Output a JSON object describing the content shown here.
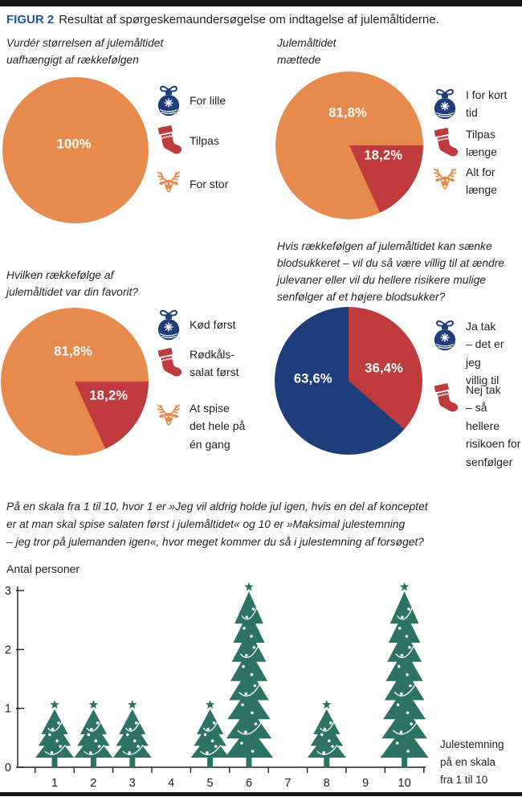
{
  "colors": {
    "orange": "#E78A4E",
    "red": "#BE3A3C",
    "navy": "#1E3D7B",
    "green": "#2C7365",
    "figblue": "#2355A0",
    "text": "#231F20",
    "rule": "#151515"
  },
  "header": {
    "figure_label": "FIGUR 2",
    "title": "Resultat af spørgeskemaundersøgelse om indtagelse af julemåltiderne."
  },
  "chart_data": [
    {
      "type": "pie",
      "question": "Vurdér størrelsen af julemåltidet\nuafhængigt af rækkefølgen",
      "from_deg": 0,
      "slices": [
        {
          "label": "100%",
          "value": 100,
          "color": "orange"
        }
      ],
      "legend": [
        {
          "icon": "ornament-icon",
          "color": "navy",
          "label": "For lille"
        },
        {
          "icon": "stocking-icon",
          "color": "red",
          "label": "Tilpas"
        },
        {
          "icon": "reindeer-icon",
          "color": "orange",
          "label": "For stor"
        }
      ]
    },
    {
      "type": "pie",
      "question": "Julemåltidet\nmættede",
      "from_deg": 155.52,
      "slices": [
        {
          "label": "81,8%",
          "value": 81.8,
          "color": "orange"
        },
        {
          "label": "18,2%",
          "value": 18.2,
          "color": "red"
        }
      ],
      "legend": [
        {
          "icon": "ornament-icon",
          "color": "navy",
          "label": "I for kort tid"
        },
        {
          "icon": "stocking-icon",
          "color": "red",
          "label": "Tilpas længe"
        },
        {
          "icon": "reindeer-icon",
          "color": "orange",
          "label": "Alt for længe"
        }
      ]
    },
    {
      "type": "pie",
      "question": "Hvilken rækkefølge af\njulemåltidet var din favorit?",
      "from_deg": 155.52,
      "slices": [
        {
          "label": "81,8%",
          "value": 81.8,
          "color": "orange"
        },
        {
          "label": "18,2%",
          "value": 18.2,
          "color": "red"
        }
      ],
      "legend": [
        {
          "icon": "ornament-icon",
          "color": "navy",
          "label": "Kød først"
        },
        {
          "icon": "stocking-icon",
          "color": "red",
          "label": "Rødkåls-\nsalat først"
        },
        {
          "icon": "reindeer-icon",
          "color": "orange",
          "label": "At spise\ndet hele på\nén gang"
        }
      ]
    },
    {
      "type": "pie",
      "question": "Hvis rækkefølgen af julemåltidet kan sænke\nblodsukkeret – vil du så være villig til at ændre\njulevaner eller vil du hellere risikere mulige\nsenfølger af et højere blodsukker?",
      "from_deg": 131.04,
      "slices": [
        {
          "label": "63,6%",
          "value": 63.6,
          "color": "navy"
        },
        {
          "label": "36,4%",
          "value": 36.4,
          "color": "red"
        }
      ],
      "legend": [
        {
          "icon": "ornament-icon",
          "color": "navy",
          "label": "Ja tak\n– det er jeg\nvillig til"
        },
        {
          "icon": "stocking-icon",
          "color": "red",
          "label": "Nej tak\n– så hellere\nrisikoen for\nsenfølger"
        }
      ]
    },
    {
      "type": "bar",
      "bar_style": "christmas-tree",
      "question": "På en skala fra 1 til 10, hvor 1 er »Jeg vil aldrig holde jul igen, hvis en del af konceptet\ner at man skal spise salaten først i julemåltidet« og 10 er »Maksimal julestemning\n– jeg tror på julemanden igen«, hvor meget kommer du så i julestemning af forsøget?",
      "ylabel": "Antal personer",
      "xlabel": "Julestemning\npå en skala\nfra 1 til 10",
      "categories": [
        "1",
        "2",
        "3",
        "4",
        "5",
        "6",
        "7",
        "8",
        "9",
        "10"
      ],
      "values": [
        1,
        1,
        1,
        0,
        1,
        3,
        0,
        1,
        0,
        3
      ],
      "yticks": [
        0,
        1,
        2,
        3
      ],
      "ylim": [
        0,
        3
      ],
      "grid": false,
      "legend_position": "none"
    }
  ]
}
